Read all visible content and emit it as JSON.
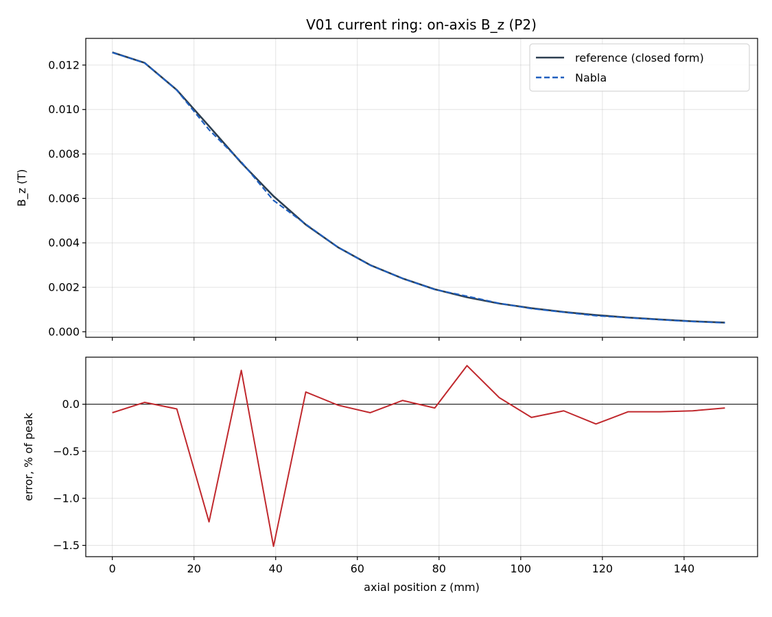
{
  "chart_data": [
    {
      "type": "line",
      "title": "V01 current ring: on-axis B_z (P2)",
      "xlabel": "",
      "ylabel": "B_z (T)",
      "xlim": [
        -6.5,
        158
      ],
      "ylim": [
        -0.00025,
        0.0132
      ],
      "xticks": [
        0,
        20,
        40,
        60,
        80,
        100,
        120,
        140
      ],
      "xtick_labels_visible": false,
      "yticks": [
        0.0,
        0.002,
        0.004,
        0.006,
        0.008,
        0.01,
        0.012
      ],
      "ytick_labels": [
        "0.000",
        "0.002",
        "0.004",
        "0.006",
        "0.008",
        "0.010",
        "0.012"
      ],
      "grid": true,
      "legend": "top-right",
      "x": [
        0,
        7.89,
        15.79,
        23.68,
        31.58,
        39.47,
        47.37,
        55.26,
        63.16,
        71.05,
        78.95,
        86.84,
        94.74,
        102.63,
        110.53,
        118.42,
        126.32,
        134.21,
        142.11,
        150
      ],
      "series": [
        {
          "name": "reference (closed form)",
          "color": "#2c3e50",
          "style": "solid",
          "values": [
            0.01257,
            0.0121,
            0.01088,
            0.00925,
            0.0076,
            0.0061,
            0.00482,
            0.0038,
            0.003,
            0.0024,
            0.00191,
            0.00155,
            0.00127,
            0.00106,
            0.00089,
            0.00075,
            0.00064,
            0.00055,
            0.00047,
            0.00041
          ]
        },
        {
          "name": "Nabla",
          "color": "#1f5fbf",
          "style": "dashed",
          "values": [
            0.01256,
            0.0121,
            0.01087,
            0.00909,
            0.00764,
            0.00591,
            0.00484,
            0.0038,
            0.00299,
            0.0024,
            0.0019,
            0.0016,
            0.00128,
            0.00104,
            0.00088,
            0.00072,
            0.00063,
            0.00054,
            0.00046,
            0.0004
          ]
        }
      ]
    },
    {
      "type": "line",
      "title": "",
      "xlabel": "axial position z (mm)",
      "ylabel": "error, % of peak",
      "xlim": [
        -6.5,
        158
      ],
      "ylim": [
        -1.62,
        0.5
      ],
      "xticks": [
        0,
        20,
        40,
        60,
        80,
        100,
        120,
        140
      ],
      "xtick_labels": [
        "0",
        "20",
        "40",
        "60",
        "80",
        "100",
        "120",
        "140"
      ],
      "yticks": [
        0.0,
        -0.5,
        -1.0,
        -1.5
      ],
      "ytick_labels": [
        "0.0",
        "−0.5",
        "−1.0",
        "−1.5"
      ],
      "grid": true,
      "reference_line_y": 0,
      "x": [
        0,
        7.89,
        15.79,
        23.68,
        31.58,
        39.47,
        47.37,
        55.26,
        63.16,
        71.05,
        78.95,
        86.84,
        94.74,
        102.63,
        110.53,
        118.42,
        126.32,
        134.21,
        142.11,
        150
      ],
      "series": [
        {
          "color": "#c0282d",
          "style": "solid",
          "values": [
            -0.09,
            0.02,
            -0.05,
            -1.25,
            0.36,
            -1.51,
            0.13,
            -0.01,
            -0.09,
            0.04,
            -0.04,
            0.41,
            0.07,
            -0.14,
            -0.07,
            -0.21,
            -0.08,
            -0.08,
            -0.07,
            -0.04
          ]
        }
      ]
    }
  ]
}
